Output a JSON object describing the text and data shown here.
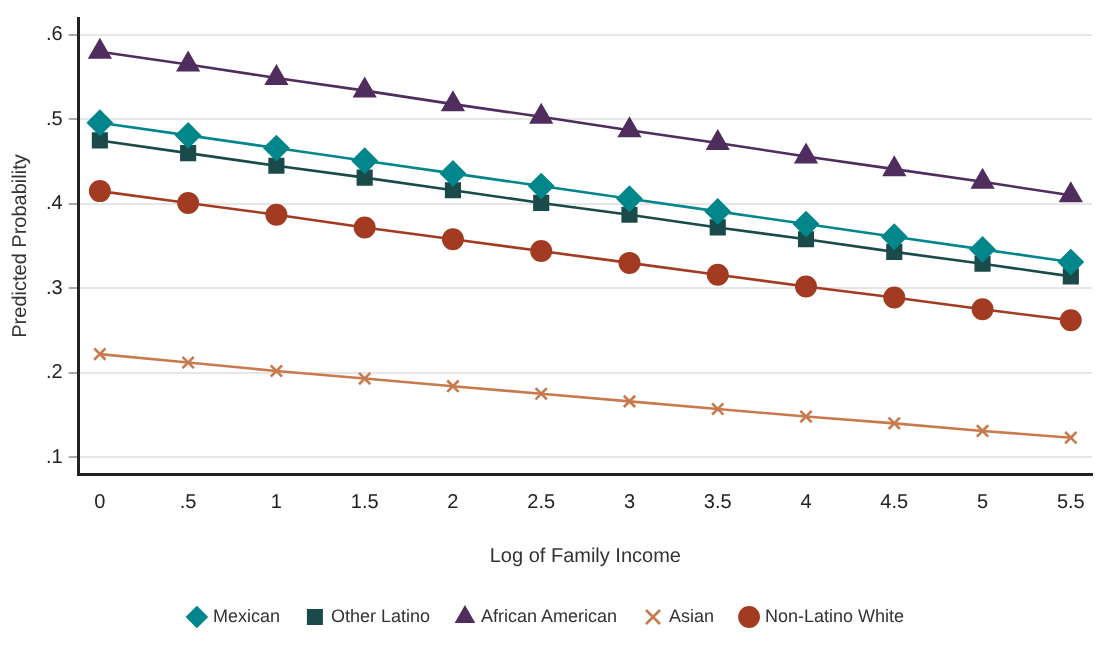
{
  "chart_data": {
    "type": "line",
    "xlabel": "Log of Family Income",
    "ylabel": "Predicted Probability",
    "x": [
      0,
      0.5,
      1,
      1.5,
      2,
      2.5,
      3,
      3.5,
      4,
      4.5,
      5,
      5.5
    ],
    "xlim": [
      -0.12,
      5.62
    ],
    "xticks": [
      0,
      {
        "value": 0.5,
        "label": ".5"
      },
      1,
      1.5,
      2,
      2.5,
      3,
      3.5,
      4,
      4.5,
      5,
      5.5
    ],
    "ylim": [
      0.08,
      0.62
    ],
    "yticks": [
      {
        "value": 0.1,
        "label": ".1"
      },
      {
        "value": 0.2,
        "label": ".2"
      },
      {
        "value": 0.3,
        "label": ".3"
      },
      {
        "value": 0.4,
        "label": ".4"
      },
      {
        "value": 0.5,
        "label": ".5"
      },
      {
        "value": 0.6,
        "label": ".6"
      }
    ],
    "grid": "y",
    "legend": "bottom",
    "series": [
      {
        "name": "Mexican",
        "color": "#00868b",
        "marker": "diamond",
        "values": [
          0.496,
          0.481,
          0.466,
          0.451,
          0.436,
          0.421,
          0.406,
          0.391,
          0.376,
          0.361,
          0.346,
          0.331
        ]
      },
      {
        "name": "Other Latino",
        "color": "#1a4a4a",
        "marker": "square",
        "values": [
          0.475,
          0.46,
          0.445,
          0.431,
          0.416,
          0.401,
          0.387,
          0.372,
          0.358,
          0.343,
          0.329,
          0.314
        ]
      },
      {
        "name": "African American",
        "color": "#4f2d5e",
        "marker": "triangle",
        "values": [
          0.58,
          0.565,
          0.549,
          0.534,
          0.518,
          0.503,
          0.487,
          0.472,
          0.456,
          0.441,
          0.426,
          0.41
        ]
      },
      {
        "name": "Asian",
        "color": "#c87a4e",
        "marker": "cross",
        "values": [
          0.222,
          0.212,
          0.202,
          0.193,
          0.184,
          0.175,
          0.166,
          0.157,
          0.148,
          0.14,
          0.131,
          0.123
        ]
      },
      {
        "name": "Non-Latino White",
        "color": "#a33b22",
        "marker": "circle",
        "values": [
          0.415,
          0.401,
          0.387,
          0.372,
          0.358,
          0.344,
          0.33,
          0.316,
          0.302,
          0.289,
          0.275,
          0.262
        ]
      }
    ]
  }
}
